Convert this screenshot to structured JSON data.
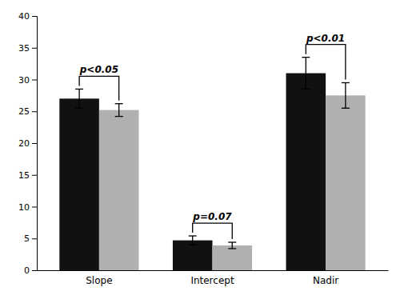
{
  "chart_data": {
    "type": "bar",
    "categories": [
      "Slope",
      "Intercept",
      "Nadir"
    ],
    "series": [
      {
        "color": "#111111",
        "values": [
          27.0,
          4.7,
          31.0
        ],
        "errors": [
          1.5,
          0.7,
          2.5
        ]
      },
      {
        "color": "#b0b0b0",
        "values": [
          25.2,
          3.9,
          27.5
        ],
        "errors": [
          1.0,
          0.5,
          2.0
        ]
      }
    ],
    "annotations": [
      "p<0.05",
      "p=0.07",
      "p<0.01"
    ],
    "ylim": [
      0,
      40
    ],
    "yticks": [
      0,
      5,
      10,
      15,
      20,
      25,
      30,
      35,
      40
    ],
    "grid": false
  }
}
